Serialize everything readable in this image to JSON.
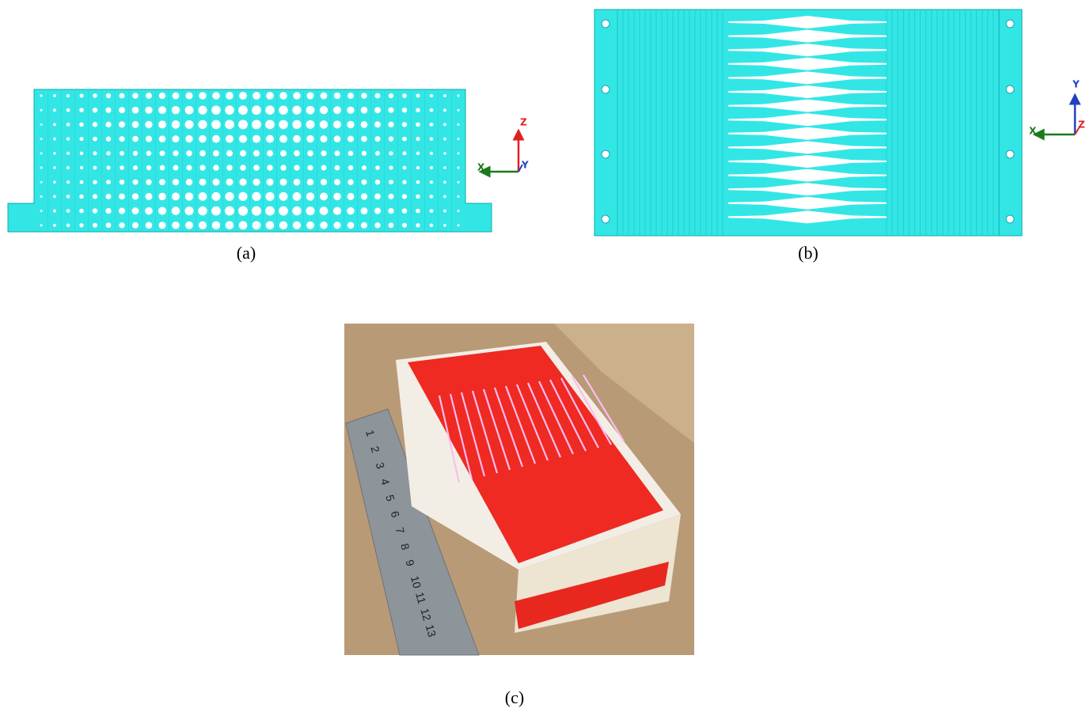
{
  "panels": [
    {
      "caption": "(a)",
      "axes": {
        "x": "X",
        "y": "Y",
        "z": "Z"
      }
    },
    {
      "caption": "(b)",
      "axes": {
        "x": "X",
        "y": "Y",
        "z": "Z"
      }
    },
    {
      "caption": "(c)",
      "ruler": [
        "1",
        "2",
        "3",
        "4",
        "5",
        "6",
        "7",
        "8",
        "9",
        "10",
        "11",
        "12",
        "13"
      ]
    }
  ]
}
